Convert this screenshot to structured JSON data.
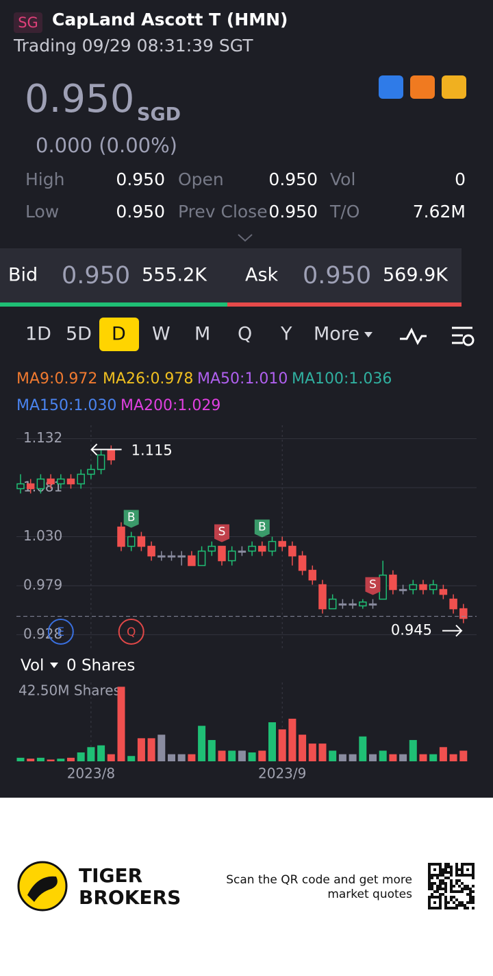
{
  "header": {
    "market_badge": "SG",
    "name": "CapLand Ascott T (HMN)",
    "status": "Trading 09/29 08:31:39 SGT"
  },
  "quote": {
    "price": "0.950",
    "currency": "SGD",
    "change": "0.000 (0.00%)",
    "stats": [
      {
        "label": "High",
        "value": "0.950"
      },
      {
        "label": "Open",
        "value": "0.950"
      },
      {
        "label": "Vol",
        "value": "0"
      },
      {
        "label": "Low",
        "value": "0.950"
      },
      {
        "label": "Prev Close",
        "value": "0.950"
      },
      {
        "label": "T/O",
        "value": "7.62M"
      }
    ]
  },
  "depth": {
    "bid_label": "Bid",
    "bid_price": "0.950",
    "bid_size": "555.2K",
    "ask_label": "Ask",
    "ask_price": "0.950",
    "ask_size": "569.9K"
  },
  "tabs": {
    "items": [
      "1D",
      "5D",
      "D",
      "W",
      "M",
      "Q",
      "Y",
      "More"
    ],
    "active": 2
  },
  "ma_legend": [
    {
      "label": "MA9:0.972",
      "color": "#f07a30"
    },
    {
      "label": "MA26:0.978",
      "color": "#f0c020"
    },
    {
      "label": "MA50:1.010",
      "color": "#b060f0"
    },
    {
      "label": "MA100:1.036",
      "color": "#30b0a0"
    },
    {
      "label": "MA150:1.030",
      "color": "#4a84f0"
    },
    {
      "label": "MA200:1.029",
      "color": "#e040e0"
    }
  ],
  "chart_data": {
    "type": "candlestick",
    "categories": [
      null,
      null,
      null,
      null,
      null,
      null,
      null,
      "2023/8",
      null,
      null,
      null,
      null,
      null,
      null,
      null,
      null,
      null,
      null,
      null,
      null,
      null,
      null,
      null,
      null,
      null,
      null,
      "2023/9",
      null,
      null,
      null,
      null,
      null,
      null,
      null,
      null,
      null,
      null,
      null,
      null,
      null,
      null,
      null,
      null,
      null,
      null
    ],
    "open": [
      1.08,
      1.085,
      1.08,
      1.09,
      1.085,
      1.09,
      1.085,
      1.095,
      1.1,
      1.12,
      1.04,
      1.02,
      1.03,
      1.02,
      1.01,
      1.01,
      1.01,
      1.01,
      1.0,
      1.015,
      1.02,
      1.005,
      1.015,
      1.015,
      1.02,
      1.015,
      1.025,
      1.02,
      1.01,
      0.995,
      0.98,
      0.955,
      0.96,
      0.96,
      0.958,
      0.96,
      0.965,
      0.99,
      0.975,
      0.975,
      0.98,
      0.975,
      0.975,
      0.965,
      0.955
    ],
    "high": [
      1.095,
      1.09,
      1.095,
      1.095,
      1.095,
      1.095,
      1.1,
      1.105,
      1.12,
      1.125,
      1.045,
      1.035,
      1.035,
      1.025,
      1.015,
      1.015,
      1.015,
      1.015,
      1.02,
      1.025,
      1.02,
      1.02,
      1.02,
      1.025,
      1.025,
      1.03,
      1.03,
      1.025,
      1.015,
      1.0,
      0.985,
      0.97,
      0.965,
      0.965,
      0.965,
      0.965,
      1.005,
      0.995,
      0.98,
      0.985,
      0.985,
      0.985,
      0.98,
      0.97,
      0.96
    ],
    "low": [
      1.075,
      1.075,
      1.075,
      1.08,
      1.08,
      1.08,
      1.08,
      1.09,
      1.095,
      1.105,
      1.015,
      1.015,
      1.015,
      1.005,
      1.005,
      1.005,
      1.0,
      1.0,
      1.0,
      1.01,
      1.0,
      1.0,
      1.01,
      1.01,
      1.01,
      1.01,
      1.015,
      1.0,
      0.99,
      0.98,
      0.95,
      0.955,
      0.955,
      0.955,
      0.955,
      0.955,
      0.965,
      0.97,
      0.97,
      0.97,
      0.97,
      0.97,
      0.965,
      0.95,
      0.94
    ],
    "close": [
      1.085,
      1.08,
      1.09,
      1.085,
      1.09,
      1.085,
      1.095,
      1.1,
      1.115,
      1.11,
      1.02,
      1.03,
      1.02,
      1.01,
      1.01,
      1.01,
      1.01,
      1.0,
      1.015,
      1.02,
      1.005,
      1.015,
      1.015,
      1.02,
      1.015,
      1.025,
      1.02,
      1.01,
      0.995,
      0.985,
      0.955,
      0.965,
      0.96,
      0.96,
      0.962,
      0.96,
      0.99,
      0.975,
      0.975,
      0.98,
      0.975,
      0.98,
      0.97,
      0.955,
      0.945
    ],
    "up_color": "#1fbf75",
    "down_color": "#f0504f",
    "flat_color": "#8a8ca0",
    "ylim": [
      0.914,
      1.146
    ],
    "yticks": [
      1.132,
      1.081,
      {
        "value": 1.03,
        "label": "1.030"
      },
      0.979,
      0.928
    ],
    "grid": true,
    "annotations": [
      {
        "value": 1.115,
        "index": 8
      },
      {
        "value": 0.945,
        "index": 44
      }
    ],
    "signals": [
      {
        "label": "B",
        "index": 11,
        "color": "#3a9a6a"
      },
      {
        "label": "S",
        "index": 20,
        "color": "#c0404a"
      },
      {
        "label": "B",
        "index": 24,
        "color": "#3a9a6a"
      },
      {
        "label": "S",
        "index": 35,
        "color": "#c0404a"
      }
    ],
    "events": [
      {
        "label": "E",
        "index": 4,
        "color": "#3a70e0"
      },
      {
        "label": "Q",
        "index": 11,
        "color": "#e04848"
      }
    ]
  },
  "volume": {
    "label": "Vol",
    "shares": "0 Shares",
    "ylim": [
      0,
      42.5
    ],
    "yticks": [
      {
        "value": 42.5,
        "label": "42.50M Shares"
      }
    ],
    "values": [
      2,
      1.5,
      2,
      1,
      1.5,
      2,
      5,
      8,
      9,
      4,
      42,
      3,
      13,
      13,
      15,
      4,
      4,
      4,
      20,
      12,
      6,
      6,
      6,
      5,
      6,
      22,
      18,
      24,
      15,
      10,
      10,
      6,
      4,
      4,
      14,
      4,
      6,
      4,
      4,
      12,
      4,
      4,
      8,
      4,
      6
    ]
  },
  "footer": {
    "brand_line1": "TIGER",
    "brand_line2": "BROKERS",
    "qr_line1": "Scan the QR code and get more",
    "qr_line2": "market quotes"
  }
}
